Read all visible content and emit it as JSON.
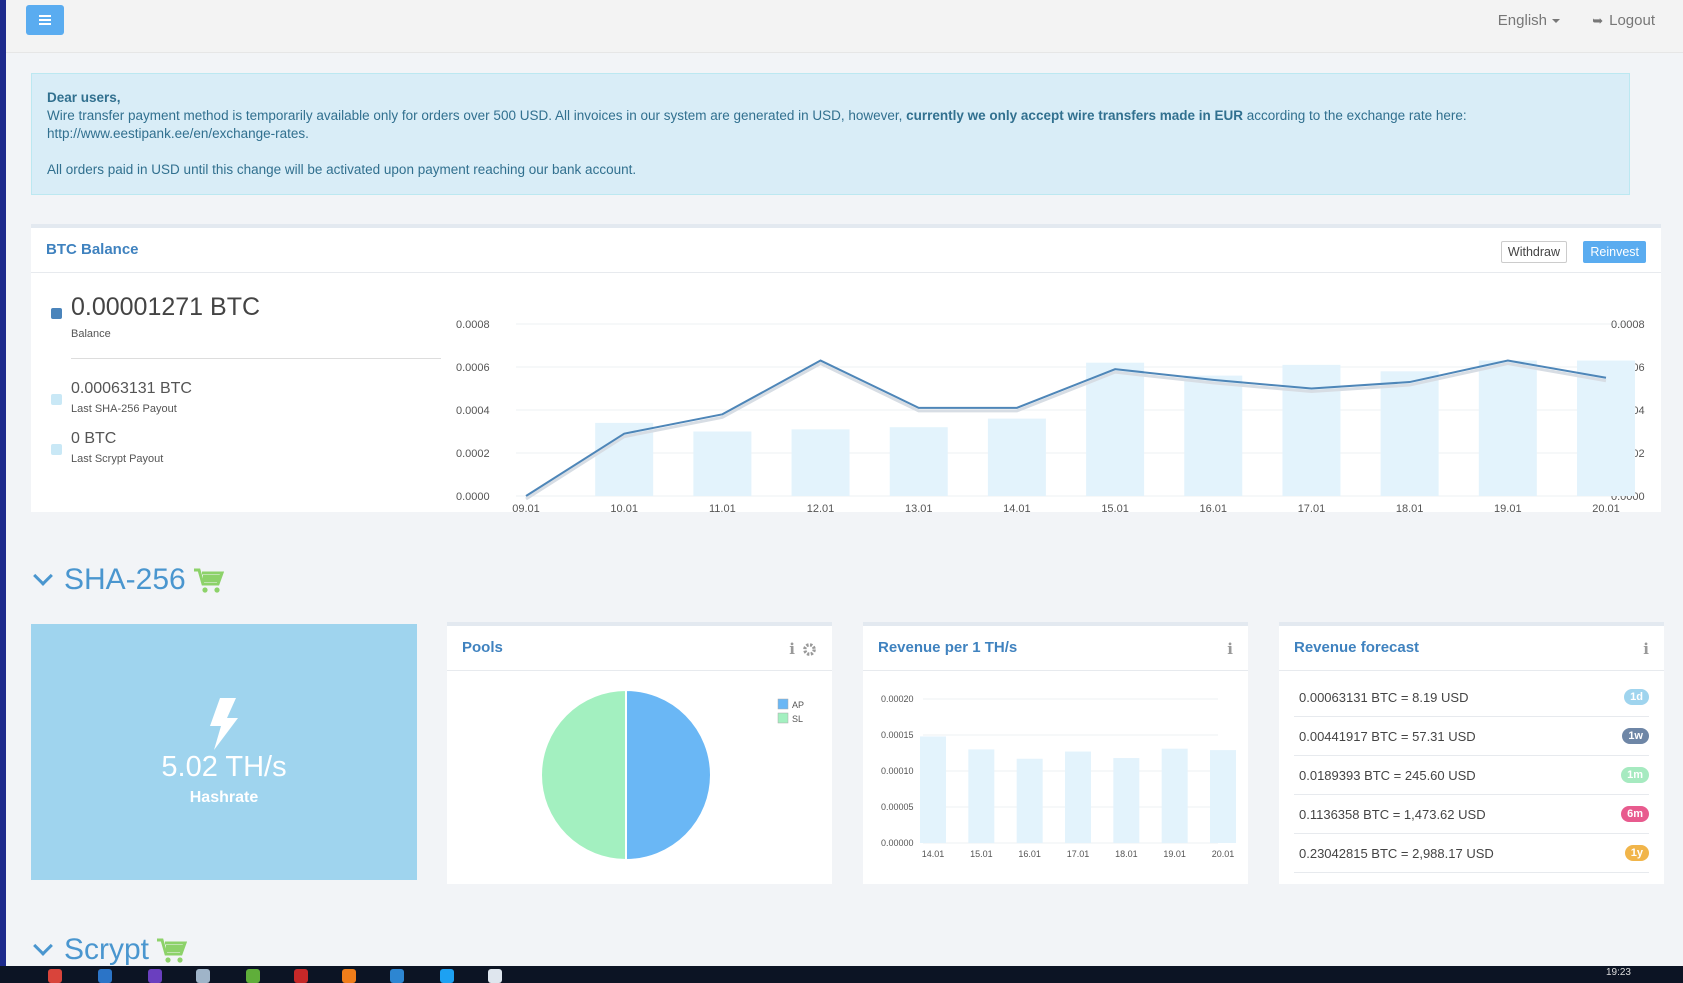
{
  "header": {
    "language": "English",
    "logout_label": "Logout"
  },
  "alert": {
    "greeting": "Dear users,",
    "line1_pre": "Wire transfer payment method is temporarily available only for orders over 500 USD. All invoices in our system are generated in USD, however, ",
    "line1_bold": "currently we only accept wire transfers made in EUR",
    "line1_post": " according to the exchange rate here:",
    "link": "http://www.eestipank.ee/en/exchange-rates",
    "link_end": ".",
    "line2": "All orders paid in USD until this change will be activated upon payment reaching our bank account."
  },
  "btc_balance": {
    "title": "BTC Balance",
    "withdraw_label": "Withdraw",
    "reinvest_label": "Reinvest",
    "balance_value": "0.00001271 BTC",
    "balance_label": "Balance",
    "sha_payout_value": "0.00063131 BTC",
    "sha_payout_label": "Last SHA-256 Payout",
    "scrypt_payout_value": "0 BTC",
    "scrypt_payout_label": "Last Scrypt Payout"
  },
  "sections": {
    "sha256": "SHA-256",
    "scrypt": "Scrypt"
  },
  "hashrate": {
    "value": "5.02 TH/s",
    "label": "Hashrate"
  },
  "pools": {
    "title": "Pools",
    "info_icon": "i"
  },
  "revenue_per_th": {
    "title": "Revenue per 1 TH/s",
    "info_icon": "i"
  },
  "revenue_forecast": {
    "title": "Revenue forecast",
    "info_icon": "i",
    "rows": [
      {
        "text": "0.00063131 BTC = 8.19 USD",
        "badge": "1d",
        "color": "#9fd4ee"
      },
      {
        "text": "0.00441917 BTC = 57.31 USD",
        "badge": "1w",
        "color": "#6e86a6"
      },
      {
        "text": "0.0189393 BTC = 245.60 USD",
        "badge": "1m",
        "color": "#a6eac0"
      },
      {
        "text": "0.1136358 BTC = 1,473.62 USD",
        "badge": "6m",
        "color": "#e85b8e"
      },
      {
        "text": "0.23042815 BTC = 2,988.17 USD",
        "badge": "1y",
        "color": "#f1b54a"
      }
    ]
  },
  "taskbar": {
    "clock": "19:23"
  },
  "chart_data": [
    {
      "type": "bar+line",
      "title": "BTC Balance",
      "categories": [
        "09.01",
        "10.01",
        "11.01",
        "12.01",
        "13.01",
        "14.01",
        "15.01",
        "16.01",
        "17.01",
        "18.01",
        "19.01",
        "20.01"
      ],
      "series": [
        {
          "name": "Payout",
          "type": "bar",
          "values": [
            0,
            0.00034,
            0.0003,
            0.00031,
            0.00032,
            0.00036,
            0.00062,
            0.00056,
            0.00061,
            0.00058,
            0.00063,
            0.00063
          ]
        },
        {
          "name": "Balance",
          "type": "line",
          "values": [
            0,
            0.00029,
            0.00038,
            0.00063,
            0.00041,
            0.00041,
            0.00059,
            0.00054,
            0.0005,
            0.00053,
            0.00063,
            0.00055
          ]
        }
      ],
      "ylim": [
        0,
        0.0008
      ],
      "yticks": [
        "0.0000",
        "0.0002",
        "0.0004",
        "0.0006",
        "0.0008"
      ]
    },
    {
      "type": "pie",
      "title": "Pools",
      "labels": [
        "AP",
        "SL"
      ],
      "values": [
        50,
        50
      ],
      "colors": [
        "#6ab7f5",
        "#a3f0c0"
      ],
      "legend": "top-right"
    },
    {
      "type": "bar",
      "title": "Revenue per 1 TH/s",
      "categories": [
        "14.01",
        "15.01",
        "16.01",
        "17.01",
        "18.01",
        "19.01",
        "20.01"
      ],
      "values": [
        0.000148,
        0.00013,
        0.000117,
        0.000127,
        0.000118,
        0.000131,
        0.000129
      ],
      "ylim": [
        0,
        0.0002
      ],
      "yticks": [
        "0.00000",
        "0.00005",
        "0.00010",
        "0.00015",
        "0.00020"
      ]
    }
  ]
}
